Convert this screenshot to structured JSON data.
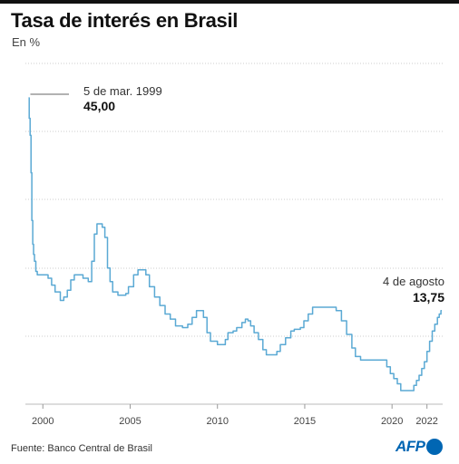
{
  "header": {
    "title": "Tasa de interés en Brasil",
    "subtitle": "En %"
  },
  "footer": {
    "source": "Fuente: Banco Central de Brasil",
    "logo": "AFP"
  },
  "colors": {
    "line": "#5aa9d4",
    "grid": "#cccccc",
    "text": "#222222",
    "brand": "#0066b3"
  },
  "chart_data": {
    "type": "line",
    "title": "Tasa de interés en Brasil",
    "subtitle": "En %",
    "xlabel": "",
    "ylabel": "",
    "xlim": [
      1999.0,
      2022.9
    ],
    "ylim": [
      0,
      45
    ],
    "grid": "horizontal",
    "x_ticks": [
      {
        "x": 2000,
        "label": "2000"
      },
      {
        "x": 2005,
        "label": "2005"
      },
      {
        "x": 2010,
        "label": "2010"
      },
      {
        "x": 2015,
        "label": "2015"
      },
      {
        "x": 2020,
        "label": "2020"
      },
      {
        "x": 2022,
        "label": "2022"
      }
    ],
    "y_gridlines": [
      0,
      9,
      18,
      27,
      36,
      45
    ],
    "series": [
      {
        "values": [
          [
            1999.18,
            45.0
          ],
          [
            1999.22,
            42.0
          ],
          [
            1999.27,
            39.5
          ],
          [
            1999.32,
            34.0
          ],
          [
            1999.37,
            27.0
          ],
          [
            1999.42,
            23.5
          ],
          [
            1999.47,
            22.0
          ],
          [
            1999.52,
            21.0
          ],
          [
            1999.6,
            19.5
          ],
          [
            1999.68,
            19.0
          ],
          [
            2000.0,
            19.0
          ],
          [
            2000.3,
            18.5
          ],
          [
            2000.5,
            17.5
          ],
          [
            2000.7,
            16.5
          ],
          [
            2001.0,
            15.25
          ],
          [
            2001.2,
            15.75
          ],
          [
            2001.4,
            16.75
          ],
          [
            2001.6,
            18.25
          ],
          [
            2001.8,
            19.0
          ],
          [
            2002.3,
            18.5
          ],
          [
            2002.6,
            18.0
          ],
          [
            2002.8,
            21.0
          ],
          [
            2002.95,
            25.0
          ],
          [
            2003.1,
            26.5
          ],
          [
            2003.25,
            26.5
          ],
          [
            2003.4,
            26.0
          ],
          [
            2003.55,
            24.5
          ],
          [
            2003.7,
            20.0
          ],
          [
            2003.85,
            18.0
          ],
          [
            2004.0,
            16.5
          ],
          [
            2004.3,
            16.0
          ],
          [
            2004.6,
            16.0
          ],
          [
            2004.75,
            16.25
          ],
          [
            2004.9,
            17.25
          ],
          [
            2005.2,
            19.0
          ],
          [
            2005.45,
            19.75
          ],
          [
            2005.7,
            19.75
          ],
          [
            2005.9,
            19.0
          ],
          [
            2006.1,
            17.25
          ],
          [
            2006.4,
            15.75
          ],
          [
            2006.7,
            14.5
          ],
          [
            2007.0,
            13.25
          ],
          [
            2007.3,
            12.5
          ],
          [
            2007.6,
            11.5
          ],
          [
            2008.0,
            11.25
          ],
          [
            2008.3,
            11.75
          ],
          [
            2008.55,
            12.75
          ],
          [
            2008.8,
            13.75
          ],
          [
            2009.0,
            13.75
          ],
          [
            2009.2,
            12.75
          ],
          [
            2009.4,
            10.5
          ],
          [
            2009.6,
            9.25
          ],
          [
            2010.0,
            8.75
          ],
          [
            2010.3,
            8.75
          ],
          [
            2010.45,
            9.5
          ],
          [
            2010.6,
            10.5
          ],
          [
            2010.9,
            10.75
          ],
          [
            2011.1,
            11.25
          ],
          [
            2011.4,
            12.0
          ],
          [
            2011.6,
            12.5
          ],
          [
            2011.75,
            12.25
          ],
          [
            2011.9,
            11.5
          ],
          [
            2012.1,
            10.5
          ],
          [
            2012.35,
            9.5
          ],
          [
            2012.6,
            8.0
          ],
          [
            2012.8,
            7.25
          ],
          [
            2013.2,
            7.25
          ],
          [
            2013.4,
            7.75
          ],
          [
            2013.6,
            8.75
          ],
          [
            2013.9,
            9.75
          ],
          [
            2014.2,
            10.75
          ],
          [
            2014.4,
            11.0
          ],
          [
            2014.75,
            11.25
          ],
          [
            2014.95,
            12.25
          ],
          [
            2015.2,
            13.25
          ],
          [
            2015.45,
            14.25
          ],
          [
            2015.65,
            14.25
          ],
          [
            2016.0,
            14.25
          ],
          [
            2016.5,
            14.25
          ],
          [
            2016.8,
            13.75
          ],
          [
            2017.1,
            12.25
          ],
          [
            2017.4,
            10.25
          ],
          [
            2017.7,
            8.25
          ],
          [
            2017.9,
            7.0
          ],
          [
            2018.2,
            6.5
          ],
          [
            2019.0,
            6.5
          ],
          [
            2019.5,
            6.5
          ],
          [
            2019.7,
            5.5
          ],
          [
            2019.9,
            4.5
          ],
          [
            2020.1,
            3.75
          ],
          [
            2020.3,
            3.0
          ],
          [
            2020.5,
            2.0
          ],
          [
            2020.8,
            2.0
          ],
          [
            2021.15,
            2.0
          ],
          [
            2021.25,
            2.75
          ],
          [
            2021.4,
            3.5
          ],
          [
            2021.55,
            4.25
          ],
          [
            2021.7,
            5.25
          ],
          [
            2021.85,
            6.25
          ],
          [
            2022.0,
            7.75
          ],
          [
            2022.15,
            9.25
          ],
          [
            2022.3,
            10.75
          ],
          [
            2022.45,
            11.75
          ],
          [
            2022.6,
            12.75
          ],
          [
            2022.7,
            13.25
          ],
          [
            2022.8,
            13.75
          ],
          [
            2022.85,
            13.75
          ]
        ]
      }
    ],
    "annotations": [
      {
        "label": "5 de mar. 1999",
        "value": "45,00",
        "x": 1999.18,
        "y": 45.0
      },
      {
        "label": "4 de agosto",
        "value": "13,75",
        "x": 2022.85,
        "y": 13.75
      }
    ]
  }
}
